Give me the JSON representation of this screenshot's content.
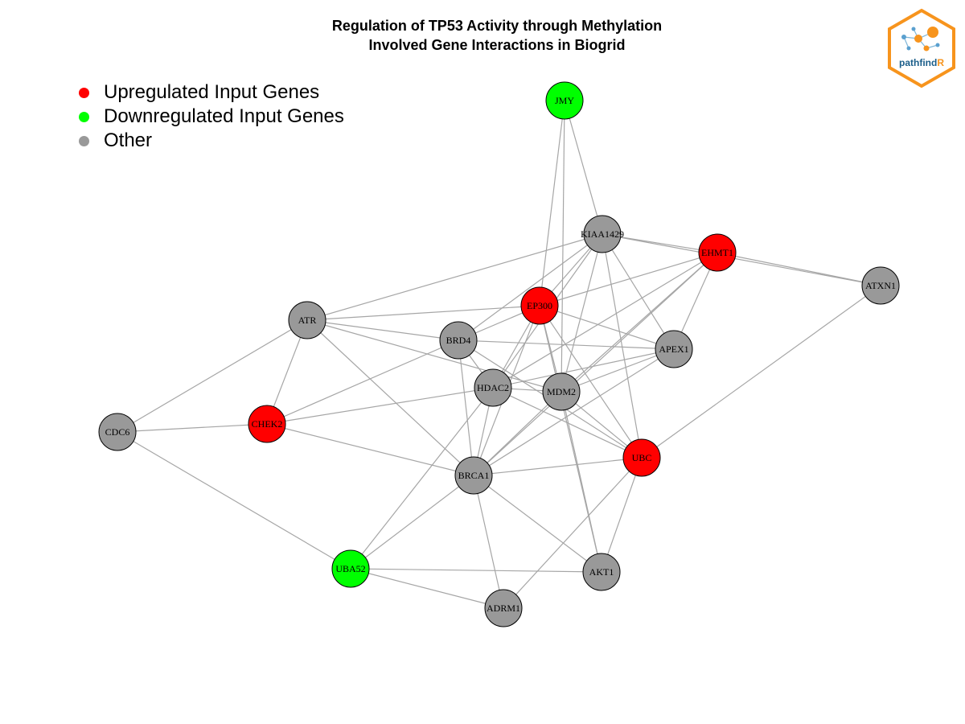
{
  "title": {
    "line1": "Regulation of TP53 Activity through Methylation",
    "line2": "Involved Gene Interactions in Biogrid"
  },
  "legend": [
    {
      "label": "Upregulated Input Genes",
      "color": "#ff0000"
    },
    {
      "label": "Downregulated Input Genes",
      "color": "#00ff00"
    },
    {
      "label": "Other",
      "color": "#999999"
    }
  ],
  "logo": {
    "text_main": "pathfind",
    "text_accent": "R",
    "border_color": "#f7941d",
    "accent_color": "#f7941d",
    "text_color": "#1b5e8a"
  },
  "colors": {
    "up": "#ff0000",
    "down": "#00ff00",
    "other": "#999999",
    "edge": "#a6a6a6",
    "node_stroke": "#000000"
  },
  "nodes": [
    {
      "id": "JMY",
      "status": "down"
    },
    {
      "id": "KIAA1429",
      "status": "other"
    },
    {
      "id": "EHMT1",
      "status": "up"
    },
    {
      "id": "ATXN1",
      "status": "other"
    },
    {
      "id": "EP300",
      "status": "up"
    },
    {
      "id": "ATR",
      "status": "other"
    },
    {
      "id": "BRD4",
      "status": "other"
    },
    {
      "id": "APEX1",
      "status": "other"
    },
    {
      "id": "HDAC2",
      "status": "other"
    },
    {
      "id": "MDM2",
      "status": "other"
    },
    {
      "id": "CHEK2",
      "status": "up"
    },
    {
      "id": "CDC6",
      "status": "other"
    },
    {
      "id": "UBC",
      "status": "up"
    },
    {
      "id": "BRCA1",
      "status": "other"
    },
    {
      "id": "UBA52",
      "status": "down"
    },
    {
      "id": "AKT1",
      "status": "other"
    },
    {
      "id": "ADRM1",
      "status": "other"
    }
  ],
  "edges": [
    [
      "JMY",
      "KIAA1429"
    ],
    [
      "JMY",
      "EP300"
    ],
    [
      "JMY",
      "MDM2"
    ],
    [
      "KIAA1429",
      "EHMT1"
    ],
    [
      "KIAA1429",
      "ATXN1"
    ],
    [
      "KIAA1429",
      "ATR"
    ],
    [
      "KIAA1429",
      "EP300"
    ],
    [
      "KIAA1429",
      "HDAC2"
    ],
    [
      "KIAA1429",
      "APEX1"
    ],
    [
      "KIAA1429",
      "UBC"
    ],
    [
      "KIAA1429",
      "MDM2"
    ],
    [
      "KIAA1429",
      "BRD4"
    ],
    [
      "EHMT1",
      "ATXN1"
    ],
    [
      "EHMT1",
      "EP300"
    ],
    [
      "EHMT1",
      "APEX1"
    ],
    [
      "EHMT1",
      "HDAC2"
    ],
    [
      "EHMT1",
      "MDM2"
    ],
    [
      "EHMT1",
      "BRCA1"
    ],
    [
      "ATXN1",
      "UBC"
    ],
    [
      "ATR",
      "EP300"
    ],
    [
      "ATR",
      "BRD4"
    ],
    [
      "ATR",
      "CHEK2"
    ],
    [
      "ATR",
      "CDC6"
    ],
    [
      "ATR",
      "BRCA1"
    ],
    [
      "ATR",
      "MDM2"
    ],
    [
      "EP300",
      "BRD4"
    ],
    [
      "EP300",
      "HDAC2"
    ],
    [
      "EP300",
      "MDM2"
    ],
    [
      "EP300",
      "APEX1"
    ],
    [
      "EP300",
      "BRCA1"
    ],
    [
      "EP300",
      "UBC"
    ],
    [
      "EP300",
      "AKT1"
    ],
    [
      "BRD4",
      "APEX1"
    ],
    [
      "BRD4",
      "HDAC2"
    ],
    [
      "BRD4",
      "BRCA1"
    ],
    [
      "BRD4",
      "CHEK2"
    ],
    [
      "BRD4",
      "UBC"
    ],
    [
      "APEX1",
      "HDAC2"
    ],
    [
      "APEX1",
      "MDM2"
    ],
    [
      "APEX1",
      "BRCA1"
    ],
    [
      "HDAC2",
      "MDM2"
    ],
    [
      "HDAC2",
      "BRCA1"
    ],
    [
      "HDAC2",
      "CHEK2"
    ],
    [
      "HDAC2",
      "UBC"
    ],
    [
      "HDAC2",
      "UBA52"
    ],
    [
      "MDM2",
      "BRCA1"
    ],
    [
      "MDM2",
      "UBC"
    ],
    [
      "MDM2",
      "AKT1"
    ],
    [
      "CHEK2",
      "CDC6"
    ],
    [
      "CHEK2",
      "BRCA1"
    ],
    [
      "CDC6",
      "UBA52"
    ],
    [
      "UBC",
      "BRCA1"
    ],
    [
      "UBC",
      "AKT1"
    ],
    [
      "UBC",
      "ADRM1"
    ],
    [
      "BRCA1",
      "UBA52"
    ],
    [
      "BRCA1",
      "AKT1"
    ],
    [
      "BRCA1",
      "ADRM1"
    ],
    [
      "UBA52",
      "AKT1"
    ],
    [
      "UBA52",
      "ADRM1"
    ]
  ]
}
